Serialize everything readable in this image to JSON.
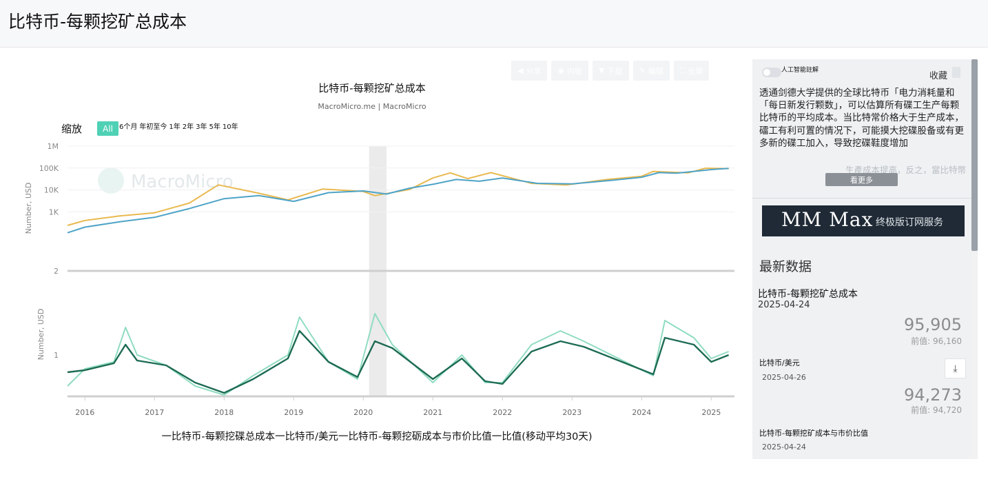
{
  "page": {
    "title": "比特币-每颗挖矿总成本"
  },
  "toolbar": {
    "buttons": [
      {
        "icon": "share-icon",
        "label": "分享"
      },
      {
        "icon": "embed-icon",
        "label": "内嵌"
      },
      {
        "icon": "download-icon",
        "label": "下载"
      },
      {
        "icon": "edit-icon",
        "label": "编辑"
      },
      {
        "icon": "fullscreen-icon",
        "label": "全屏"
      }
    ]
  },
  "chart": {
    "title": "比特币-每颗挖矿总成本",
    "subtitle": "MacroMicro.me | MacroMicro",
    "watermark": "MacroMicro",
    "zoom_label": "缩放",
    "zoom_all": "All",
    "zoom_options": [
      "6个月",
      "年初至今",
      "1年",
      "2年",
      "3年",
      "5年",
      "10年"
    ],
    "legend_text": "一比特币-每颗挖碟总成本一比特币/美元一比特币-每颗挖砺成本与市价比值一比值(移动平均30天)"
  },
  "colors": {
    "cost": "#4ea3c7",
    "price": "#e9b94f",
    "ratio": "#8fdcc0",
    "ratio_ma": "#1d6b54",
    "accent": "#4fd1b5",
    "highlight_band": "#ebebeb"
  },
  "chart_data": {
    "type": "line",
    "x_range": [
      "2015-10",
      "2025-05"
    ],
    "x_ticks": [
      "2016",
      "2017",
      "2018",
      "2019",
      "2020",
      "2021",
      "2022",
      "2023",
      "2024",
      "2025"
    ],
    "highlight_band": [
      "2020-02",
      "2020-05"
    ],
    "top_panel": {
      "ylabel": "Number, USD",
      "yscale": "log",
      "ylim": [
        2,
        1000000
      ],
      "y_ticks": [
        {
          "label": "1M",
          "value": 1000000
        },
        {
          "label": "100K",
          "value": 100000
        },
        {
          "label": "10K",
          "value": 10000
        },
        {
          "label": "1K",
          "value": 1000
        },
        {
          "label": "2",
          "value": 2
        }
      ],
      "series": [
        {
          "name": "比特币-每颗挖碟总成本",
          "color_key": "cost",
          "points": [
            [
              "2015-10",
              110
            ],
            [
              "2016-01",
              200
            ],
            [
              "2016-07",
              350
            ],
            [
              "2017-01",
              560
            ],
            [
              "2017-07",
              1400
            ],
            [
              "2018-01",
              4000
            ],
            [
              "2018-07",
              5500
            ],
            [
              "2019-01",
              3000
            ],
            [
              "2019-07",
              7500
            ],
            [
              "2020-01",
              9000
            ],
            [
              "2020-05",
              6500
            ],
            [
              "2020-09",
              12000
            ],
            [
              "2021-01",
              18000
            ],
            [
              "2021-05",
              30000
            ],
            [
              "2021-09",
              25000
            ],
            [
              "2022-01",
              35000
            ],
            [
              "2022-07",
              20000
            ],
            [
              "2023-01",
              19000
            ],
            [
              "2023-07",
              26000
            ],
            [
              "2024-01",
              38000
            ],
            [
              "2024-04",
              62000
            ],
            [
              "2024-07",
              58000
            ],
            [
              "2025-01",
              85000
            ],
            [
              "2025-04",
              95905
            ]
          ]
        },
        {
          "name": "比特币/美元",
          "color_key": "price",
          "points": [
            [
              "2015-10",
              240
            ],
            [
              "2016-01",
              400
            ],
            [
              "2016-07",
              650
            ],
            [
              "2017-01",
              900
            ],
            [
              "2017-07",
              2500
            ],
            [
              "2017-12",
              17000
            ],
            [
              "2018-07",
              7000
            ],
            [
              "2018-12",
              3500
            ],
            [
              "2019-06",
              11000
            ],
            [
              "2020-01",
              8500
            ],
            [
              "2020-03",
              5500
            ],
            [
              "2020-09",
              10500
            ],
            [
              "2021-01",
              35000
            ],
            [
              "2021-04",
              60000
            ],
            [
              "2021-07",
              33000
            ],
            [
              "2021-11",
              62000
            ],
            [
              "2022-06",
              20000
            ],
            [
              "2022-12",
              16800
            ],
            [
              "2023-07",
              30000
            ],
            [
              "2024-01",
              42000
            ],
            [
              "2024-03",
              70000
            ],
            [
              "2024-09",
              60000
            ],
            [
              "2024-12",
              98000
            ],
            [
              "2025-04",
              94273
            ]
          ]
        }
      ]
    },
    "bottom_panel": {
      "ylabel": "Number, USD",
      "ylim": [
        0.4,
        1.9
      ],
      "y_ticks": [
        {
          "label": "1",
          "value": 1
        }
      ],
      "series": [
        {
          "name": "比特币-每颗挖砺成本与市价比值",
          "color_key": "ratio",
          "points": [
            [
              "2015-10",
              0.55
            ],
            [
              "2016-01",
              0.8
            ],
            [
              "2016-06",
              0.9
            ],
            [
              "2016-08",
              1.4
            ],
            [
              "2016-10",
              1.0
            ],
            [
              "2017-03",
              0.85
            ],
            [
              "2017-08",
              0.55
            ],
            [
              "2018-01",
              0.42
            ],
            [
              "2018-06",
              0.7
            ],
            [
              "2018-12",
              1.0
            ],
            [
              "2019-02",
              1.55
            ],
            [
              "2019-07",
              0.9
            ],
            [
              "2019-12",
              0.65
            ],
            [
              "2020-03",
              1.6
            ],
            [
              "2020-06",
              1.15
            ],
            [
              "2021-01",
              0.6
            ],
            [
              "2021-06",
              1.0
            ],
            [
              "2021-10",
              0.6
            ],
            [
              "2022-01",
              0.6
            ],
            [
              "2022-06",
              1.15
            ],
            [
              "2022-11",
              1.35
            ],
            [
              "2023-03",
              1.2
            ],
            [
              "2023-09",
              0.95
            ],
            [
              "2024-03",
              0.7
            ],
            [
              "2024-05",
              1.5
            ],
            [
              "2024-10",
              1.25
            ],
            [
              "2025-01",
              0.95
            ],
            [
              "2025-04",
              1.05
            ]
          ]
        },
        {
          "name": "比值(移动平均30天)",
          "color_key": "ratio_ma",
          "points": [
            [
              "2015-10",
              0.75
            ],
            [
              "2016-01",
              0.78
            ],
            [
              "2016-06",
              0.88
            ],
            [
              "2016-08",
              1.15
            ],
            [
              "2016-10",
              0.92
            ],
            [
              "2017-03",
              0.85
            ],
            [
              "2017-08",
              0.6
            ],
            [
              "2018-01",
              0.45
            ],
            [
              "2018-06",
              0.65
            ],
            [
              "2018-12",
              0.95
            ],
            [
              "2019-02",
              1.35
            ],
            [
              "2019-07",
              0.9
            ],
            [
              "2019-12",
              0.68
            ],
            [
              "2020-03",
              1.2
            ],
            [
              "2020-06",
              1.1
            ],
            [
              "2021-01",
              0.65
            ],
            [
              "2021-06",
              0.95
            ],
            [
              "2021-10",
              0.62
            ],
            [
              "2022-01",
              0.58
            ],
            [
              "2022-06",
              1.05
            ],
            [
              "2022-11",
              1.2
            ],
            [
              "2023-03",
              1.12
            ],
            [
              "2023-09",
              0.92
            ],
            [
              "2024-03",
              0.72
            ],
            [
              "2024-05",
              1.25
            ],
            [
              "2024-10",
              1.15
            ],
            [
              "2025-01",
              0.9
            ],
            [
              "2025-04",
              1.0
            ]
          ]
        }
      ]
    }
  },
  "sidebar": {
    "ai_toggle_label": "人工智能註解",
    "favorite_label": "收藏",
    "description": "透通剑德大学提供的全球比特币「电力消耗量和「每日新发行颗数」，可以估算所有碟工生产每颗比特币的平均成本。当比特常价格大于生产成本，礌工有利可置的情况下，可能摸大挖碟股备或有更多新的碟工加入，导致挖碟鞋度增加",
    "description_fade": "生產成本提高，反之，當比特幣",
    "more_button": "看更多",
    "banner_main": "MM Max",
    "banner_sub": "终极版订网服务",
    "latest_title": "最新数据",
    "items": [
      {
        "name": "比特币-每颗挖矿总成本",
        "date": "2025-04-24",
        "value": "95,905",
        "prev": "前值: 96,160"
      },
      {
        "name": "比特币/美元",
        "date": "2025-04-26",
        "value": "94,273",
        "prev": "前值: 94,720"
      },
      {
        "name": "比特币-每颗挖矿成本与市价比值",
        "date": "2025-04-24"
      }
    ]
  }
}
